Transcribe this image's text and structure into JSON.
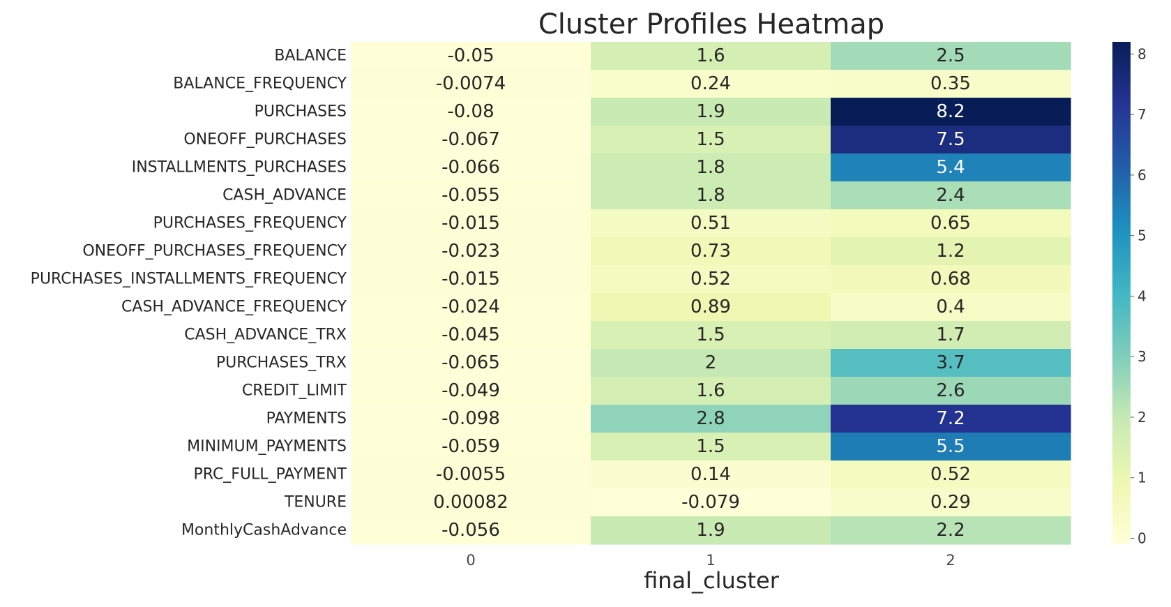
{
  "chart_data": {
    "type": "heatmap",
    "title": "Cluster Profiles Heatmap",
    "xlabel": "final_cluster",
    "ylabel": "",
    "columns": [
      "0",
      "1",
      "2"
    ],
    "rows": [
      "BALANCE",
      "BALANCE_FREQUENCY",
      "PURCHASES",
      "ONEOFF_PURCHASES",
      "INSTALLMENTS_PURCHASES",
      "CASH_ADVANCE",
      "PURCHASES_FREQUENCY",
      "ONEOFF_PURCHASES_FREQUENCY",
      "PURCHASES_INSTALLMENTS_FREQUENCY",
      "CASH_ADVANCE_FREQUENCY",
      "CASH_ADVANCE_TRX",
      "PURCHASES_TRX",
      "CREDIT_LIMIT",
      "PAYMENTS",
      "MINIMUM_PAYMENTS",
      "PRC_FULL_PAYMENT",
      "TENURE",
      "MonthlyCashAdvance"
    ],
    "values": [
      [
        -0.05,
        1.6,
        2.5
      ],
      [
        -0.0074,
        0.24,
        0.35
      ],
      [
        -0.08,
        1.9,
        8.2
      ],
      [
        -0.067,
        1.5,
        7.5
      ],
      [
        -0.066,
        1.8,
        5.4
      ],
      [
        -0.055,
        1.8,
        2.4
      ],
      [
        -0.015,
        0.51,
        0.65
      ],
      [
        -0.023,
        0.73,
        1.2
      ],
      [
        -0.015,
        0.52,
        0.68
      ],
      [
        -0.024,
        0.89,
        0.4
      ],
      [
        -0.045,
        1.5,
        1.7
      ],
      [
        -0.065,
        2,
        3.7
      ],
      [
        -0.049,
        1.6,
        2.6
      ],
      [
        -0.098,
        2.8,
        7.2
      ],
      [
        -0.059,
        1.5,
        5.5
      ],
      [
        -0.0055,
        0.14,
        0.52
      ],
      [
        0.00082,
        -0.079,
        0.29
      ],
      [
        -0.056,
        1.9,
        2.2
      ]
    ],
    "annotations": [
      [
        "-0.05",
        "1.6",
        "2.5"
      ],
      [
        "-0.0074",
        "0.24",
        "0.35"
      ],
      [
        "-0.08",
        "1.9",
        "8.2"
      ],
      [
        "-0.067",
        "1.5",
        "7.5"
      ],
      [
        "-0.066",
        "1.8",
        "5.4"
      ],
      [
        "-0.055",
        "1.8",
        "2.4"
      ],
      [
        "-0.015",
        "0.51",
        "0.65"
      ],
      [
        "-0.023",
        "0.73",
        "1.2"
      ],
      [
        "-0.015",
        "0.52",
        "0.68"
      ],
      [
        "-0.024",
        "0.89",
        "0.4"
      ],
      [
        "-0.045",
        "1.5",
        "1.7"
      ],
      [
        "-0.065",
        "2",
        "3.7"
      ],
      [
        "-0.049",
        "1.6",
        "2.6"
      ],
      [
        "-0.098",
        "2.8",
        "7.2"
      ],
      [
        "-0.059",
        "1.5",
        "5.5"
      ],
      [
        "-0.0055",
        "0.14",
        "0.52"
      ],
      [
        "0.00082",
        "-0.079",
        "0.29"
      ],
      [
        "-0.056",
        "1.9",
        "2.2"
      ]
    ],
    "colormap": "YlGnBu",
    "colorbar": {
      "range": [
        -0.098,
        8.2
      ],
      "ticks": [
        "0",
        "1",
        "2",
        "3",
        "4",
        "5",
        "6",
        "7",
        "8"
      ]
    },
    "colors": {
      "dark_text": "#262626",
      "light_text": "#ffffff",
      "scale": [
        "#ffffd9",
        "#edf8b1",
        "#c7e9b4",
        "#7fcdbb",
        "#41b6c4",
        "#1d91c0",
        "#225ea8",
        "#253494",
        "#081d58"
      ]
    },
    "grid": false,
    "legend": "colorbar-right"
  }
}
